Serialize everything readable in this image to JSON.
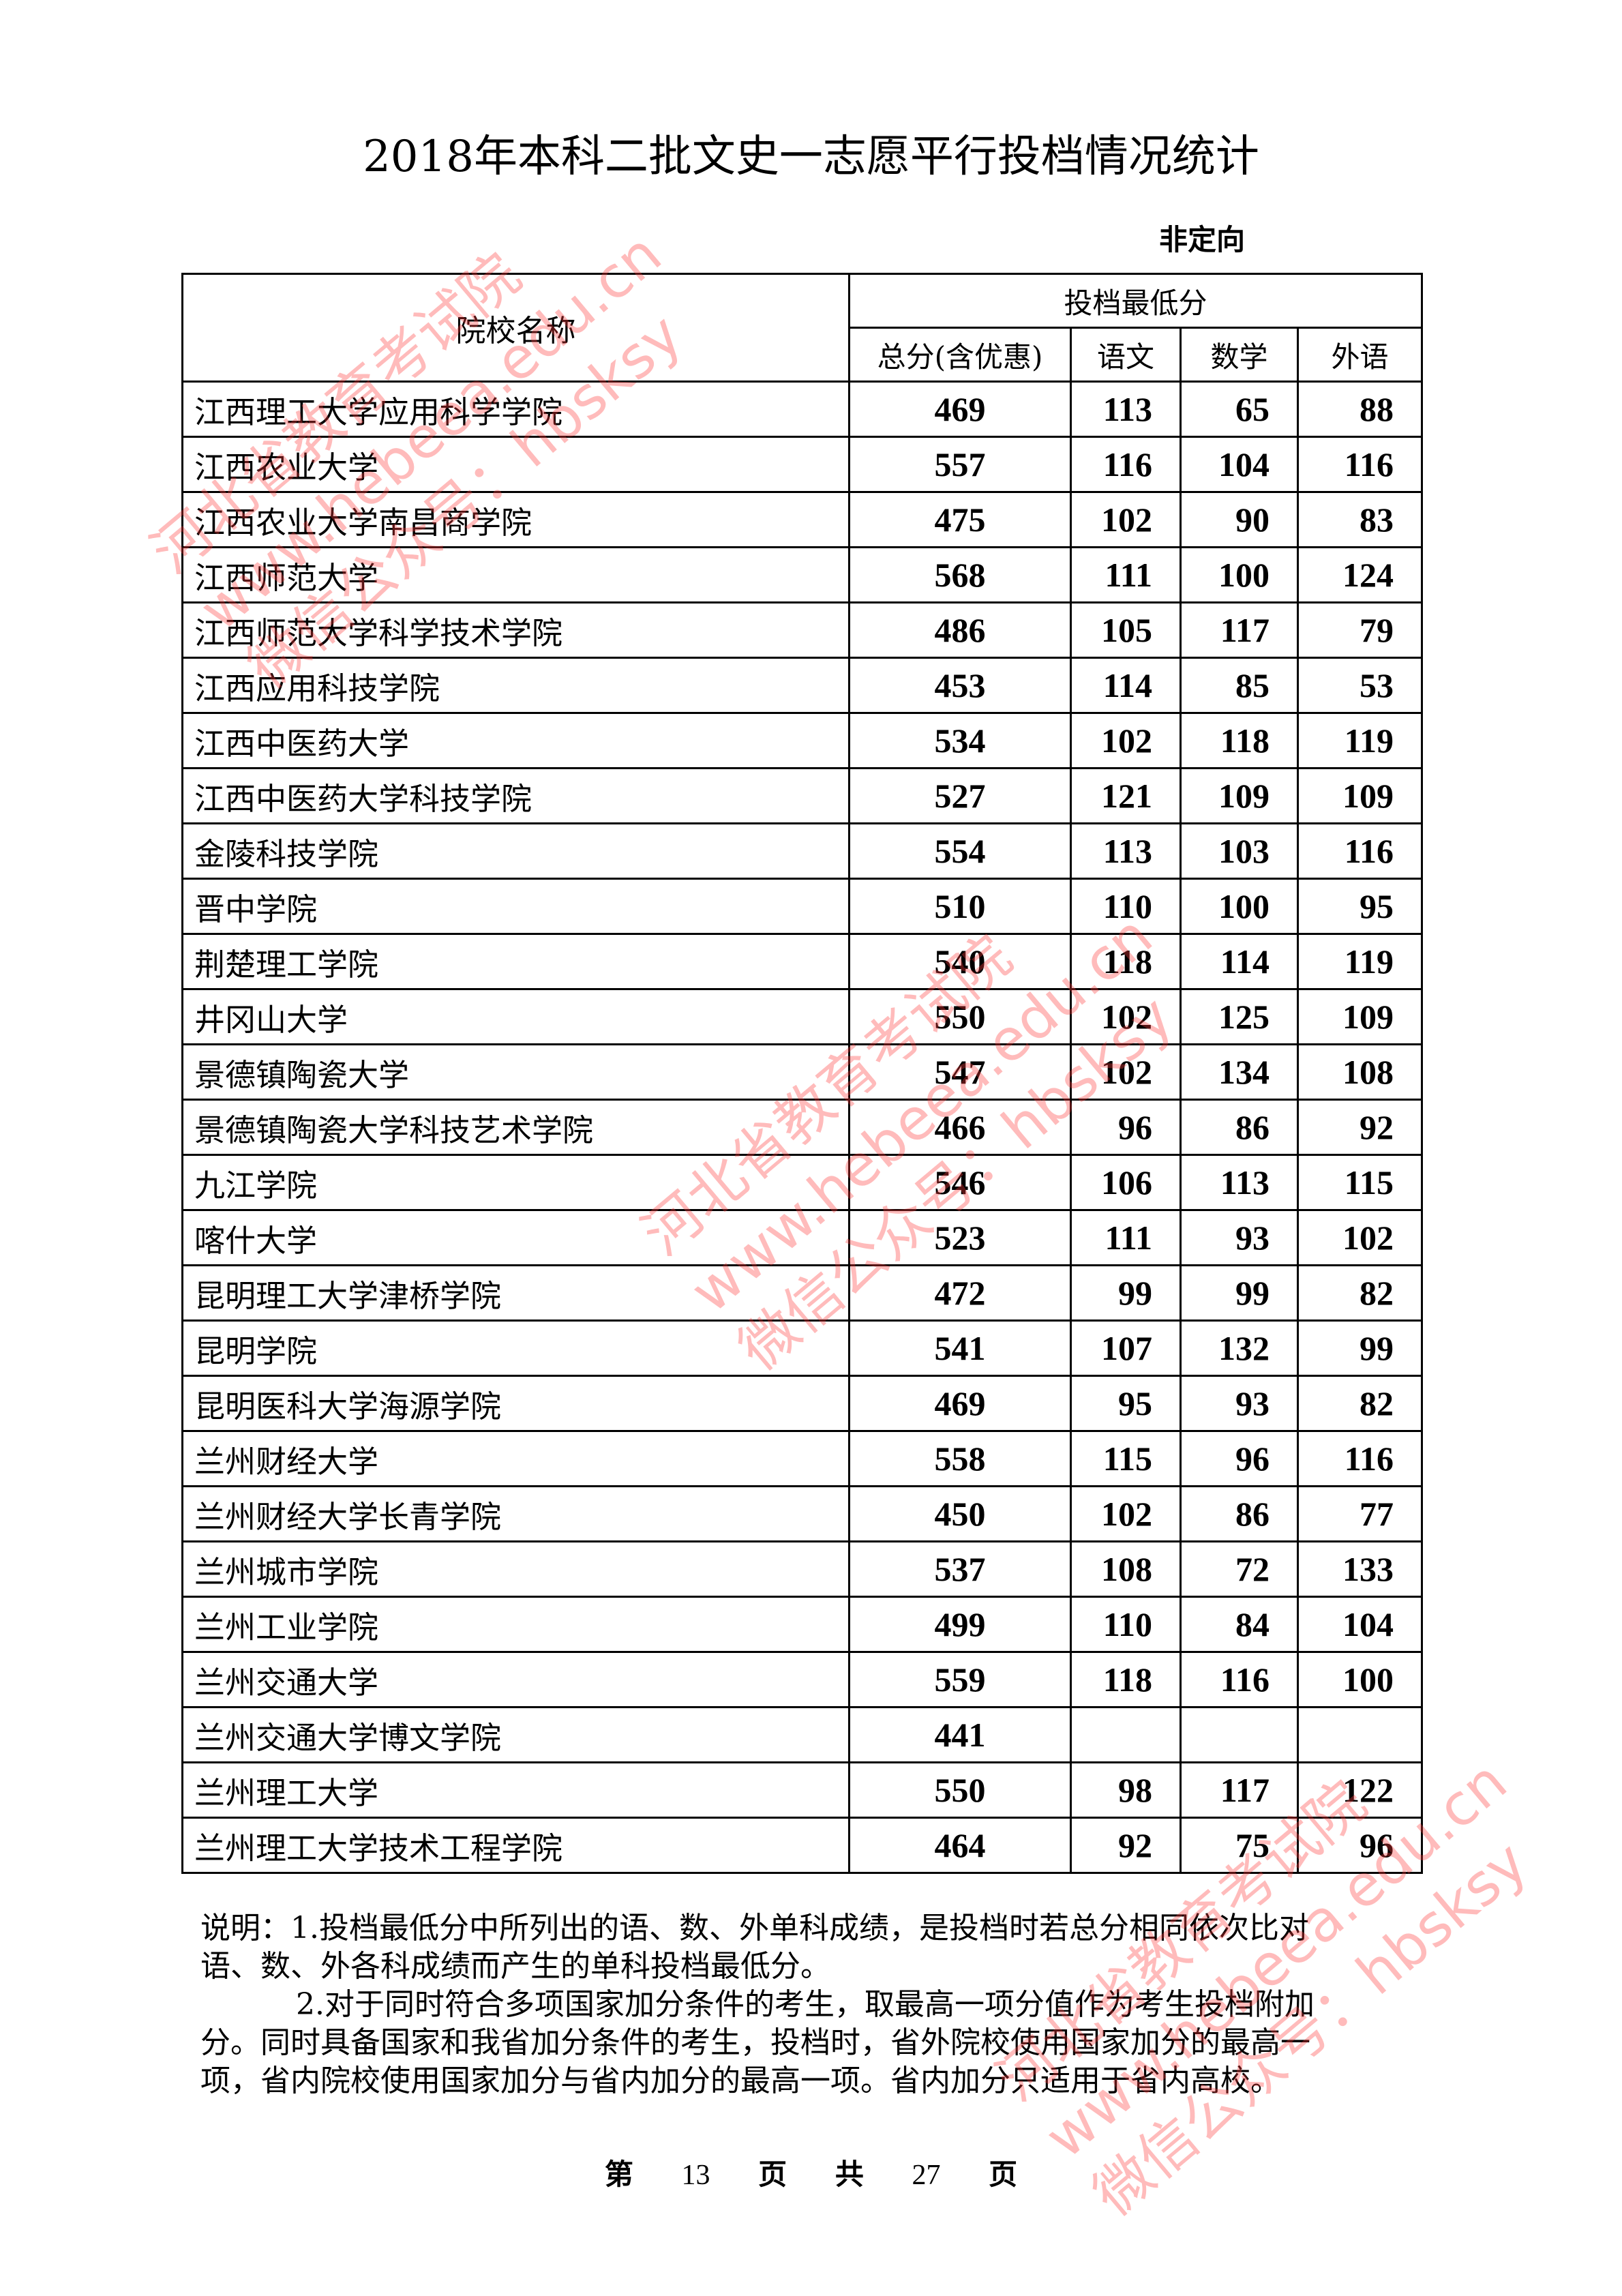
{
  "title": "2018年本科二批文史一志愿平行投档情况统计",
  "subtitle": "非定向",
  "table": {
    "header_name": "院校名称",
    "header_group": "投档最低分",
    "header_cols": [
      "总分(含优惠)",
      "语文",
      "数学",
      "外语"
    ],
    "rows": [
      {
        "name": "江西理工大学应用科学学院",
        "total": "469",
        "chinese": "113",
        "math": "65",
        "foreign": "88"
      },
      {
        "name": "江西农业大学",
        "total": "557",
        "chinese": "116",
        "math": "104",
        "foreign": "116"
      },
      {
        "name": "江西农业大学南昌商学院",
        "total": "475",
        "chinese": "102",
        "math": "90",
        "foreign": "83"
      },
      {
        "name": "江西师范大学",
        "total": "568",
        "chinese": "111",
        "math": "100",
        "foreign": "124"
      },
      {
        "name": "江西师范大学科学技术学院",
        "total": "486",
        "chinese": "105",
        "math": "117",
        "foreign": "79"
      },
      {
        "name": "江西应用科技学院",
        "total": "453",
        "chinese": "114",
        "math": "85",
        "foreign": "53"
      },
      {
        "name": "江西中医药大学",
        "total": "534",
        "chinese": "102",
        "math": "118",
        "foreign": "119"
      },
      {
        "name": "江西中医药大学科技学院",
        "total": "527",
        "chinese": "121",
        "math": "109",
        "foreign": "109"
      },
      {
        "name": "金陵科技学院",
        "total": "554",
        "chinese": "113",
        "math": "103",
        "foreign": "116"
      },
      {
        "name": "晋中学院",
        "total": "510",
        "chinese": "110",
        "math": "100",
        "foreign": "95"
      },
      {
        "name": "荆楚理工学院",
        "total": "540",
        "chinese": "118",
        "math": "114",
        "foreign": "119"
      },
      {
        "name": "井冈山大学",
        "total": "550",
        "chinese": "102",
        "math": "125",
        "foreign": "109"
      },
      {
        "name": "景德镇陶瓷大学",
        "total": "547",
        "chinese": "102",
        "math": "134",
        "foreign": "108"
      },
      {
        "name": "景德镇陶瓷大学科技艺术学院",
        "total": "466",
        "chinese": "96",
        "math": "86",
        "foreign": "92"
      },
      {
        "name": "九江学院",
        "total": "546",
        "chinese": "106",
        "math": "113",
        "foreign": "115"
      },
      {
        "name": "喀什大学",
        "total": "523",
        "chinese": "111",
        "math": "93",
        "foreign": "102"
      },
      {
        "name": "昆明理工大学津桥学院",
        "total": "472",
        "chinese": "99",
        "math": "99",
        "foreign": "82"
      },
      {
        "name": "昆明学院",
        "total": "541",
        "chinese": "107",
        "math": "132",
        "foreign": "99"
      },
      {
        "name": "昆明医科大学海源学院",
        "total": "469",
        "chinese": "95",
        "math": "93",
        "foreign": "82"
      },
      {
        "name": "兰州财经大学",
        "total": "558",
        "chinese": "115",
        "math": "96",
        "foreign": "116"
      },
      {
        "name": "兰州财经大学长青学院",
        "total": "450",
        "chinese": "102",
        "math": "86",
        "foreign": "77"
      },
      {
        "name": "兰州城市学院",
        "total": "537",
        "chinese": "108",
        "math": "72",
        "foreign": "133"
      },
      {
        "name": "兰州工业学院",
        "total": "499",
        "chinese": "110",
        "math": "84",
        "foreign": "104"
      },
      {
        "name": "兰州交通大学",
        "total": "559",
        "chinese": "118",
        "math": "116",
        "foreign": "100"
      },
      {
        "name": "兰州交通大学博文学院",
        "total": "441",
        "chinese": "",
        "math": "",
        "foreign": ""
      },
      {
        "name": "兰州理工大学",
        "total": "550",
        "chinese": "98",
        "math": "117",
        "foreign": "122"
      },
      {
        "name": "兰州理工大学技术工程学院",
        "total": "464",
        "chinese": "92",
        "math": "75",
        "foreign": "96"
      }
    ]
  },
  "notes": {
    "line1": "说明：1.投档最低分中所列出的语、数、外单科成绩，是投档时若总分相同依次比对",
    "line2": "语、数、外各科成绩而产生的单科投档最低分。",
    "line3": "2.对于同时符合多项国家加分条件的考生，取最高一项分值作为考生投档附加",
    "line4": "分。同时具备国家和我省加分条件的考生，投档时，省外院校使用国家加分的最高一",
    "line5": "项，省内院校使用国家加分与省内加分的最高一项。省内加分只适用于省内高校。"
  },
  "footer": {
    "di": "第",
    "page": "13",
    "ye1": "页",
    "gong": "共",
    "total": "27",
    "ye2": "页"
  },
  "watermark": {
    "line1": "河北省教育考试院",
    "line2": "www.hebeea.edu.cn",
    "line3": "微信公众号：hbsksy",
    "color": "#ff3c3c"
  }
}
